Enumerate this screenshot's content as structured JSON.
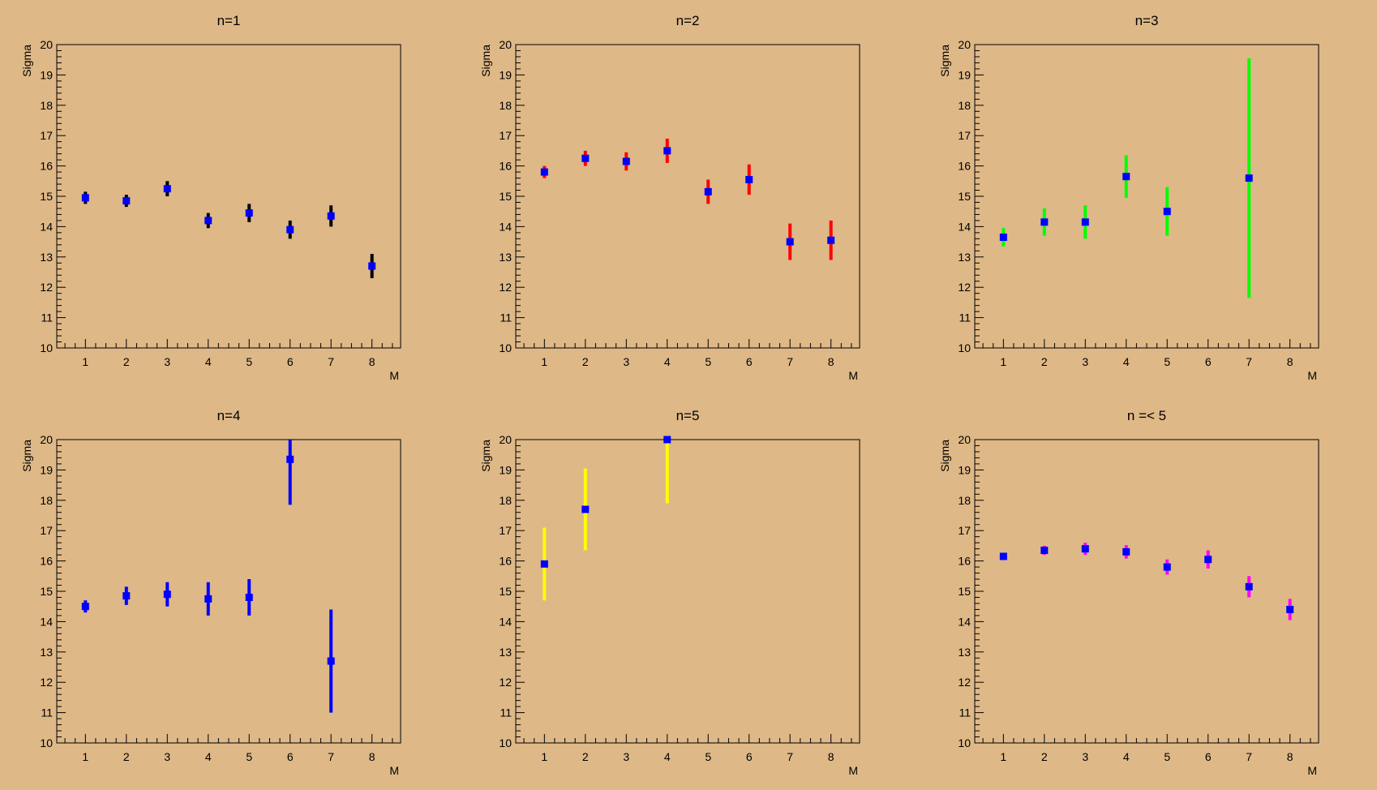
{
  "chart_data": [
    {
      "type": "scatter",
      "title": "n=1",
      "xlabel": "M",
      "ylabel": "Sigma",
      "xlim": [
        0.3,
        8.7
      ],
      "ylim": [
        10,
        20
      ],
      "x_ticks": [
        1,
        2,
        3,
        4,
        5,
        6,
        7,
        8
      ],
      "y_ticks": [
        10,
        11,
        12,
        13,
        14,
        15,
        16,
        17,
        18,
        19,
        20
      ],
      "grid": false,
      "marker_color": "#0000ff",
      "error_color": "#000000",
      "points": [
        {
          "x": 1,
          "y": 14.95,
          "err": 0.2
        },
        {
          "x": 2,
          "y": 14.85,
          "err": 0.2
        },
        {
          "x": 3,
          "y": 15.25,
          "err": 0.25
        },
        {
          "x": 4,
          "y": 14.2,
          "err": 0.25
        },
        {
          "x": 5,
          "y": 14.45,
          "err": 0.3
        },
        {
          "x": 6,
          "y": 13.9,
          "err": 0.3
        },
        {
          "x": 7,
          "y": 14.35,
          "err": 0.35
        },
        {
          "x": 8,
          "y": 12.7,
          "err": 0.4
        }
      ]
    },
    {
      "type": "scatter",
      "title": "n=2",
      "xlabel": "M",
      "ylabel": "Sigma",
      "xlim": [
        0.3,
        8.7
      ],
      "ylim": [
        10,
        20
      ],
      "x_ticks": [
        1,
        2,
        3,
        4,
        5,
        6,
        7,
        8
      ],
      "y_ticks": [
        10,
        11,
        12,
        13,
        14,
        15,
        16,
        17,
        18,
        19,
        20
      ],
      "grid": false,
      "marker_color": "#0000ff",
      "error_color": "#ff0000",
      "points": [
        {
          "x": 1,
          "y": 15.8,
          "err": 0.2
        },
        {
          "x": 2,
          "y": 16.25,
          "err": 0.25
        },
        {
          "x": 3,
          "y": 16.15,
          "err": 0.3
        },
        {
          "x": 4,
          "y": 16.5,
          "err": 0.4
        },
        {
          "x": 5,
          "y": 15.15,
          "err": 0.4
        },
        {
          "x": 6,
          "y": 15.55,
          "err": 0.5
        },
        {
          "x": 7,
          "y": 13.5,
          "err": 0.6
        },
        {
          "x": 8,
          "y": 13.55,
          "err": 0.65
        }
      ]
    },
    {
      "type": "scatter",
      "title": "n=3",
      "xlabel": "M",
      "ylabel": "Sigma",
      "xlim": [
        0.3,
        8.7
      ],
      "ylim": [
        10,
        20
      ],
      "x_ticks": [
        1,
        2,
        3,
        4,
        5,
        6,
        7,
        8
      ],
      "y_ticks": [
        10,
        11,
        12,
        13,
        14,
        15,
        16,
        17,
        18,
        19,
        20
      ],
      "grid": false,
      "marker_color": "#0000ff",
      "error_color": "#00ff00",
      "points": [
        {
          "x": 1,
          "y": 13.65,
          "err": 0.3
        },
        {
          "x": 2,
          "y": 14.15,
          "err": 0.45
        },
        {
          "x": 3,
          "y": 14.15,
          "err": 0.55
        },
        {
          "x": 4,
          "y": 15.65,
          "err": 0.7
        },
        {
          "x": 5,
          "y": 14.5,
          "err": 0.8
        },
        {
          "x": 7,
          "y": 15.6,
          "err": 3.95
        }
      ]
    },
    {
      "type": "scatter",
      "title": "n=4",
      "xlabel": "M",
      "ylabel": "Sigma",
      "xlim": [
        0.3,
        8.7
      ],
      "ylim": [
        10,
        20
      ],
      "x_ticks": [
        1,
        2,
        3,
        4,
        5,
        6,
        7,
        8
      ],
      "y_ticks": [
        10,
        11,
        12,
        13,
        14,
        15,
        16,
        17,
        18,
        19,
        20
      ],
      "grid": false,
      "marker_color": "#0000ff",
      "error_color": "#0000ff",
      "points": [
        {
          "x": 1,
          "y": 14.5,
          "err": 0.2
        },
        {
          "x": 2,
          "y": 14.85,
          "err": 0.3
        },
        {
          "x": 3,
          "y": 14.9,
          "err": 0.4
        },
        {
          "x": 4,
          "y": 14.75,
          "err": 0.55
        },
        {
          "x": 5,
          "y": 14.8,
          "err": 0.6
        },
        {
          "x": 6,
          "y": 19.35,
          "err": 1.5
        },
        {
          "x": 7,
          "y": 12.7,
          "err": 1.7
        }
      ]
    },
    {
      "type": "scatter",
      "title": "n=5",
      "xlabel": "M",
      "ylabel": "Sigma",
      "xlim": [
        0.3,
        8.7
      ],
      "ylim": [
        10,
        20
      ],
      "x_ticks": [
        1,
        2,
        3,
        4,
        5,
        6,
        7,
        8
      ],
      "y_ticks": [
        10,
        11,
        12,
        13,
        14,
        15,
        16,
        17,
        18,
        19,
        20
      ],
      "grid": false,
      "marker_color": "#0000ff",
      "error_color": "#ffff00",
      "points": [
        {
          "x": 1,
          "y": 15.9,
          "err": 1.2
        },
        {
          "x": 2,
          "y": 17.7,
          "err": 1.35
        },
        {
          "x": 4,
          "y": 20.0,
          "err": 2.1
        }
      ]
    },
    {
      "type": "scatter",
      "title": "n =< 5",
      "xlabel": "M",
      "ylabel": "Sigma",
      "xlim": [
        0.3,
        8.7
      ],
      "ylim": [
        10,
        20
      ],
      "x_ticks": [
        1,
        2,
        3,
        4,
        5,
        6,
        7,
        8
      ],
      "y_ticks": [
        10,
        11,
        12,
        13,
        14,
        15,
        16,
        17,
        18,
        19,
        20
      ],
      "grid": false,
      "marker_color": "#0000ff",
      "error_color": "#ff00ff",
      "points": [
        {
          "x": 1,
          "y": 16.15,
          "err": 0.08
        },
        {
          "x": 2,
          "y": 16.35,
          "err": 0.15
        },
        {
          "x": 3,
          "y": 16.4,
          "err": 0.2
        },
        {
          "x": 4,
          "y": 16.3,
          "err": 0.22
        },
        {
          "x": 5,
          "y": 15.8,
          "err": 0.25
        },
        {
          "x": 6,
          "y": 16.05,
          "err": 0.3
        },
        {
          "x": 7,
          "y": 15.15,
          "err": 0.35
        },
        {
          "x": 8,
          "y": 14.4,
          "err": 0.35
        }
      ]
    }
  ]
}
